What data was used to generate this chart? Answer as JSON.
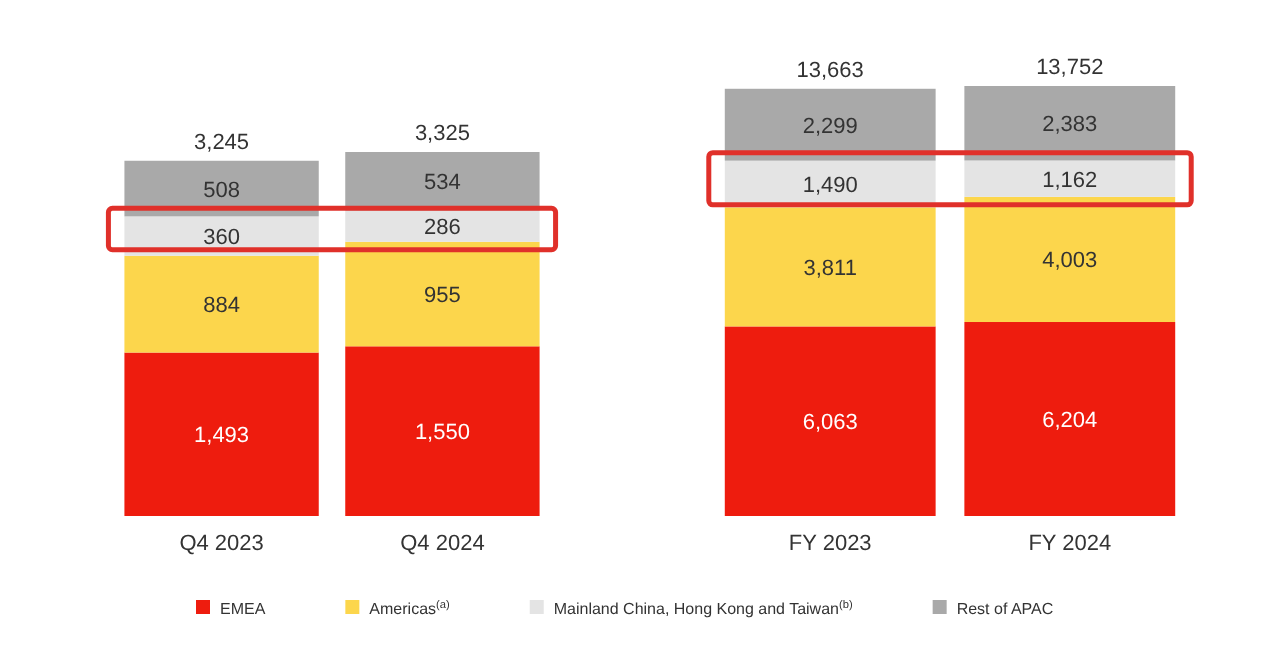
{
  "chart_data": [
    {
      "type": "bar",
      "stacked": true,
      "categories": [
        "Q4 2023",
        "Q4 2024"
      ],
      "tick_labels": "x",
      "legend": "bottom",
      "totals": [
        "3,245",
        "3,325"
      ],
      "series": [
        {
          "name": "EMEA",
          "color": "#ee1c0e",
          "values": [
            1493,
            1550
          ],
          "value_labels": [
            "1,493",
            "1,550"
          ]
        },
        {
          "name": "Americas$^{(a)}$",
          "color": "#fcd64c",
          "values": [
            884,
            955
          ],
          "value_labels": [
            "884",
            "955"
          ]
        },
        {
          "name": "Mainland China, Hong Kong and Taiwan$^{(b)}$",
          "color": "#e4e4e4",
          "values": [
            360,
            286
          ],
          "value_labels": [
            "360",
            "286"
          ]
        },
        {
          "name": "Rest of APAC",
          "color": "#a9a9a9",
          "values": [
            508,
            534
          ],
          "value_labels": [
            "508",
            "534"
          ]
        }
      ]
    },
    {
      "type": "bar",
      "stacked": true,
      "categories": [
        "FY 2023",
        "FY 2024"
      ],
      "tick_labels": "x",
      "totals": [
        "13,663",
        "13,752"
      ],
      "series": [
        {
          "color": "#ee1c0e",
          "values": [
            6063,
            6204
          ],
          "value_labels": [
            "6,063",
            "6,204"
          ]
        },
        {
          "color": "#fcd64c",
          "values": [
            3811,
            4003
          ],
          "value_labels": [
            "3,811",
            "4,003"
          ]
        },
        {
          "color": "#e4e4e4",
          "values": [
            1490,
            1162
          ],
          "value_labels": [
            "1,490",
            "1,162"
          ]
        },
        {
          "color": "#a9a9a9",
          "values": [
            2299,
            2383
          ],
          "value_labels": [
            "2,299",
            "2,383"
          ]
        }
      ]
    }
  ]
}
